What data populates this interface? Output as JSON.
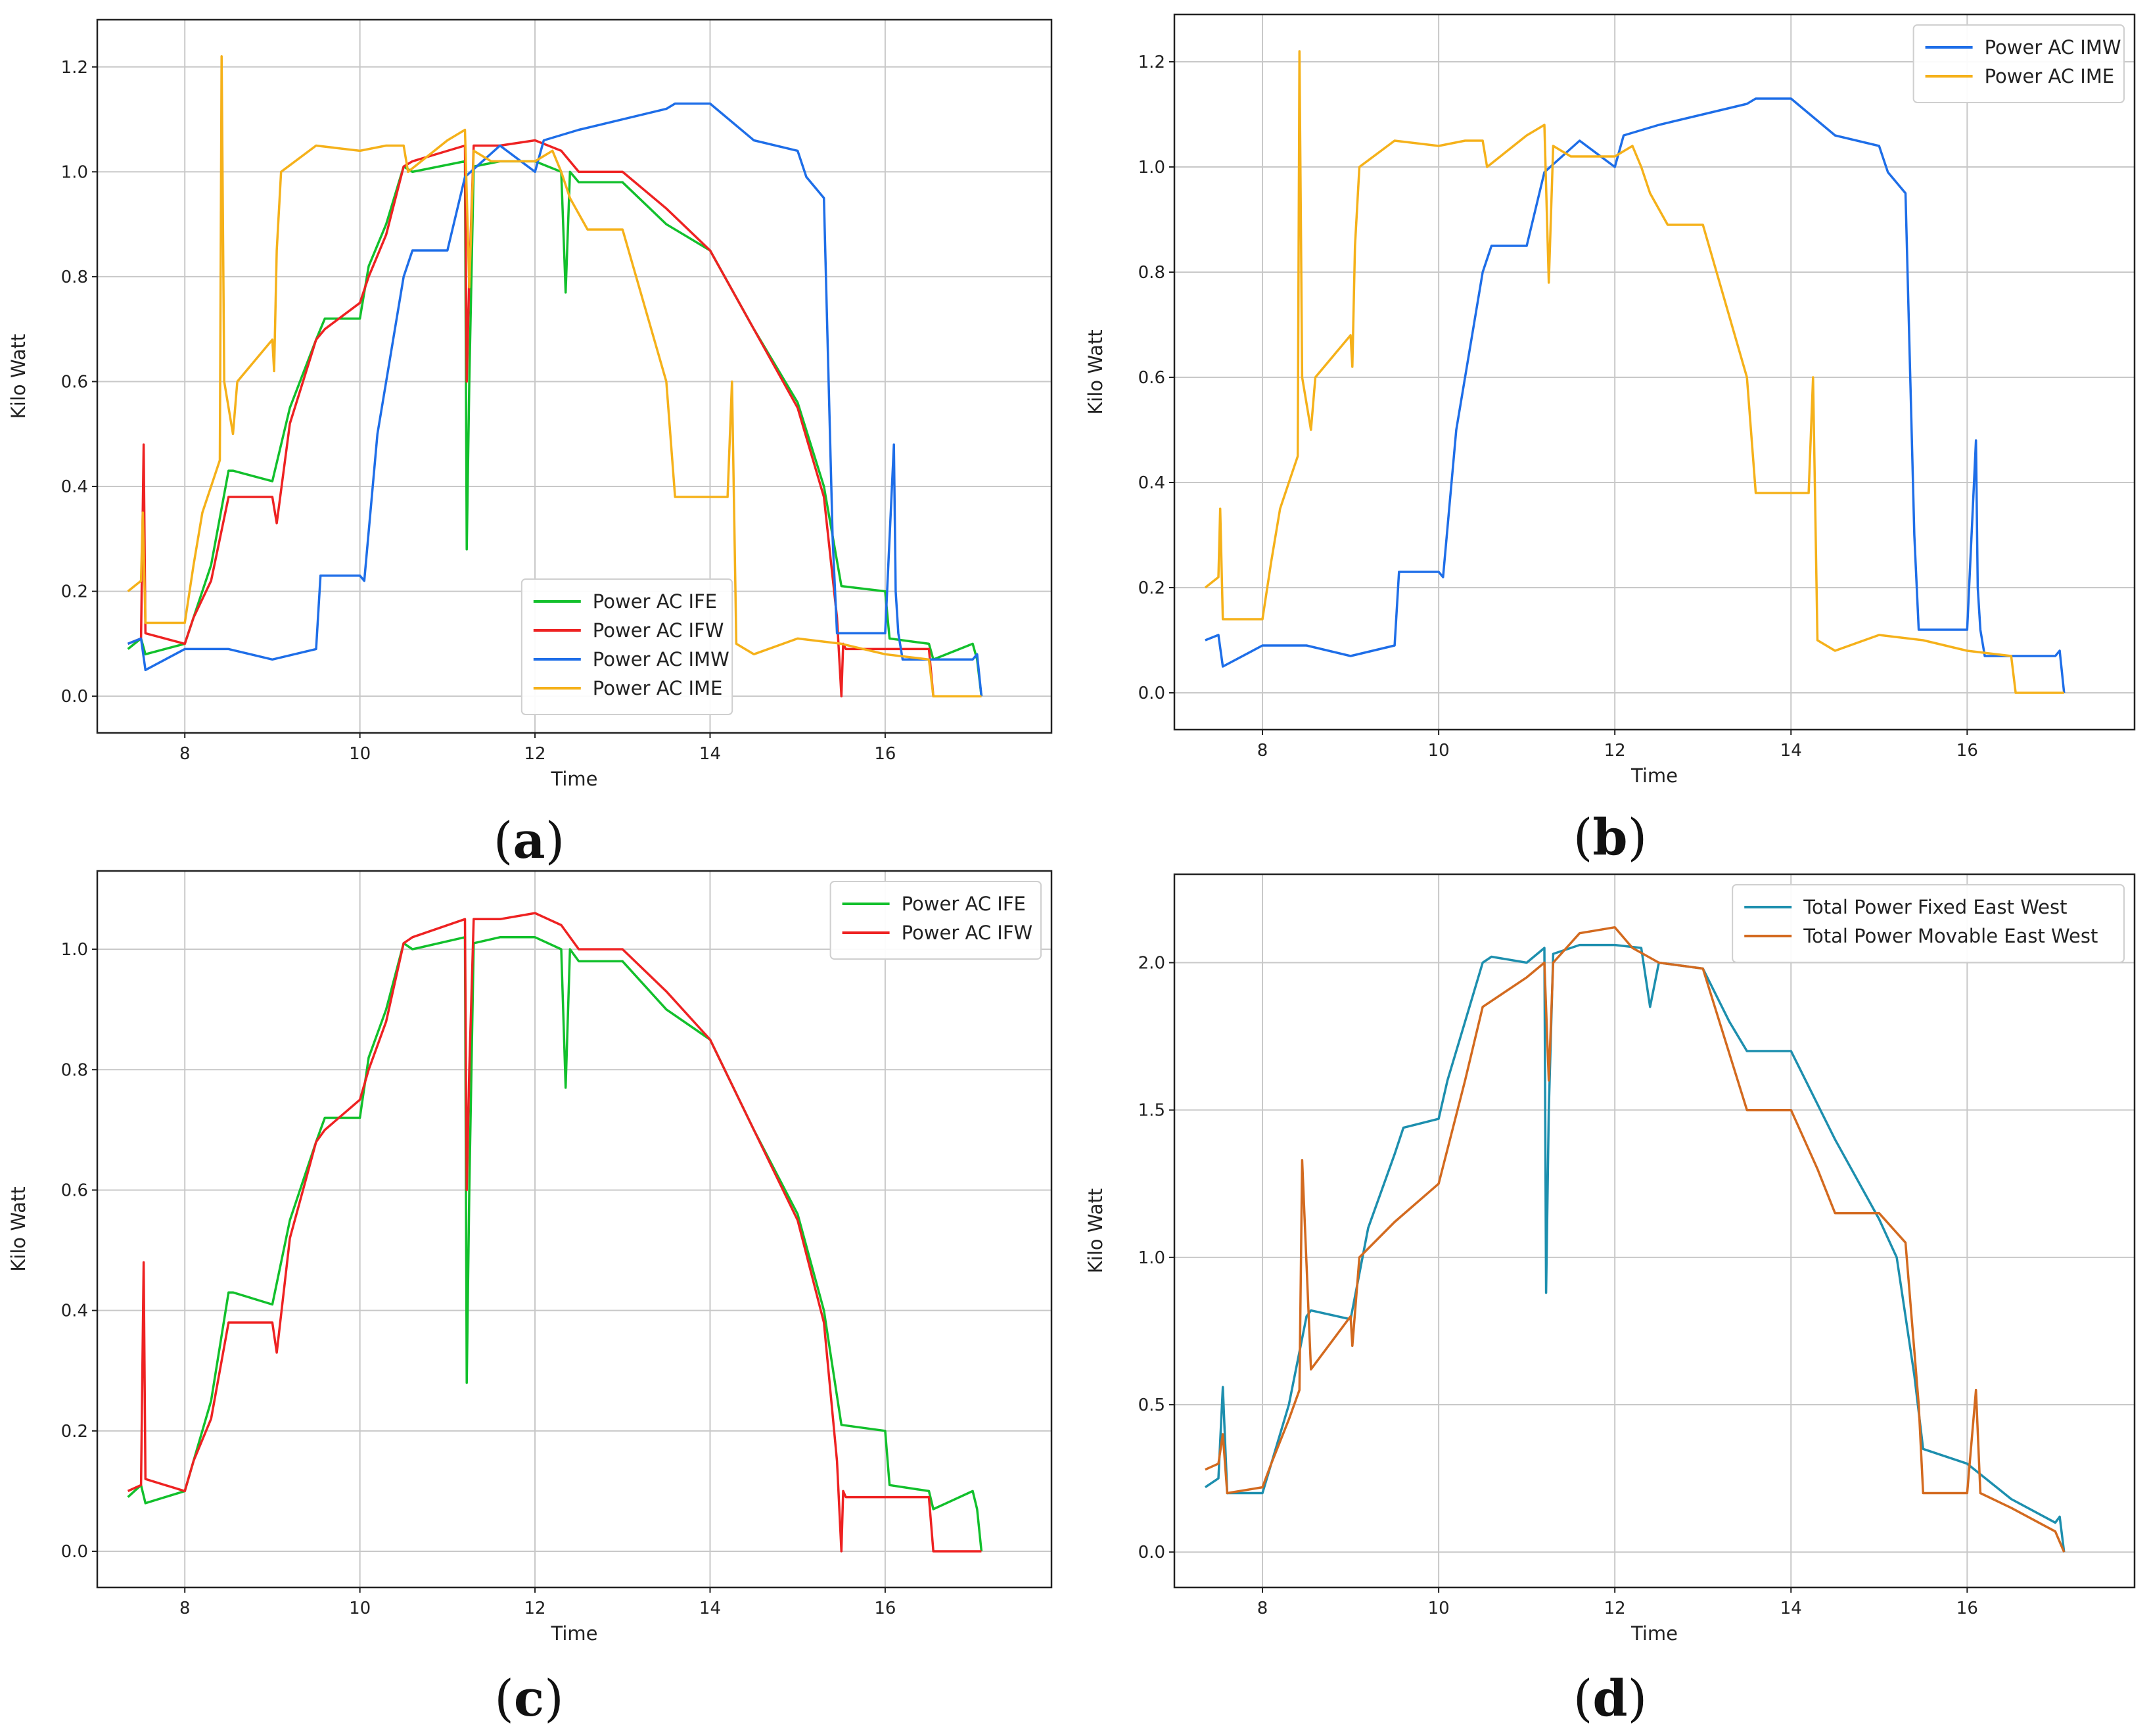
{
  "chart_data": [
    {
      "id": "a",
      "type": "line",
      "caption": "a",
      "xlabel": "Time",
      "ylabel": "Kilo Watt",
      "xlim": [
        7.0,
        17.9
      ],
      "ylim": [
        -0.07,
        1.29
      ],
      "xticks": [
        8,
        10,
        12,
        14,
        16
      ],
      "yticks": [
        0.0,
        0.2,
        0.4,
        0.6,
        0.8,
        1.0,
        1.2
      ],
      "ytick_labels": [
        "0.0",
        "0.2",
        "0.4",
        "0.6",
        "0.8",
        "1.0",
        "1.2"
      ],
      "legend_position": "bottom-center",
      "series": [
        {
          "name": "Power AC IFE",
          "color": "#12c02c",
          "x": [
            7.35,
            7.5,
            7.55,
            8.0,
            8.1,
            8.3,
            8.5,
            8.55,
            9.0,
            9.2,
            9.5,
            9.6,
            10.0,
            10.1,
            10.3,
            10.5,
            10.6,
            11.2,
            11.22,
            11.25,
            11.3,
            11.6,
            12.0,
            12.3,
            12.35,
            12.4,
            12.5,
            13.0,
            13.5,
            14.0,
            14.5,
            15.0,
            15.3,
            15.5,
            16.0,
            16.05,
            16.5,
            16.55,
            17.0,
            17.05,
            17.1
          ],
          "y": [
            0.09,
            0.11,
            0.08,
            0.1,
            0.15,
            0.25,
            0.43,
            0.43,
            0.41,
            0.55,
            0.68,
            0.72,
            0.72,
            0.82,
            0.9,
            1.01,
            1.0,
            1.02,
            0.28,
            0.6,
            1.01,
            1.02,
            1.02,
            1.0,
            0.77,
            1.0,
            0.98,
            0.98,
            0.9,
            0.85,
            0.7,
            0.56,
            0.4,
            0.21,
            0.2,
            0.11,
            0.1,
            0.07,
            0.1,
            0.07,
            0.0
          ]
        },
        {
          "name": "Power AC IFW",
          "color": "#ee2222",
          "x": [
            7.35,
            7.5,
            7.53,
            7.55,
            8.0,
            8.1,
            8.3,
            8.5,
            8.55,
            9.0,
            9.05,
            9.2,
            9.5,
            9.6,
            10.0,
            10.1,
            10.3,
            10.5,
            10.6,
            11.2,
            11.22,
            11.25,
            11.3,
            11.6,
            12.0,
            12.3,
            12.5,
            13.0,
            13.5,
            14.0,
            14.5,
            15.0,
            15.3,
            15.45,
            15.5,
            15.52,
            15.55,
            16.0,
            16.5,
            16.55,
            17.0,
            17.1
          ],
          "y": [
            0.1,
            0.11,
            0.48,
            0.12,
            0.1,
            0.15,
            0.22,
            0.38,
            0.38,
            0.38,
            0.33,
            0.52,
            0.68,
            0.7,
            0.75,
            0.8,
            0.88,
            1.01,
            1.02,
            1.05,
            0.6,
            0.8,
            1.05,
            1.05,
            1.06,
            1.04,
            1.0,
            1.0,
            0.93,
            0.85,
            0.7,
            0.55,
            0.38,
            0.15,
            0.0,
            0.1,
            0.09,
            0.09,
            0.09,
            0.0,
            0.0,
            0.0
          ]
        },
        {
          "name": "Power AC IMW",
          "color": "#1e6ee8",
          "x": [
            7.35,
            7.5,
            7.55,
            8.0,
            8.5,
            9.0,
            9.5,
            9.55,
            10.0,
            10.05,
            10.2,
            10.5,
            10.6,
            11.0,
            11.2,
            11.4,
            11.6,
            12.0,
            12.1,
            12.5,
            13.0,
            13.5,
            13.6,
            14.0,
            14.5,
            15.0,
            15.1,
            15.3,
            15.4,
            15.45,
            15.5,
            16.0,
            16.1,
            16.12,
            16.15,
            16.2,
            17.0,
            17.05,
            17.1
          ],
          "y": [
            0.1,
            0.11,
            0.05,
            0.09,
            0.09,
            0.07,
            0.09,
            0.23,
            0.23,
            0.22,
            0.5,
            0.8,
            0.85,
            0.85,
            0.99,
            1.02,
            1.05,
            1.0,
            1.06,
            1.08,
            1.1,
            1.12,
            1.13,
            1.13,
            1.06,
            1.04,
            0.99,
            0.95,
            0.3,
            0.12,
            0.12,
            0.12,
            0.48,
            0.2,
            0.12,
            0.07,
            0.07,
            0.08,
            0.0
          ]
        },
        {
          "name": "Power AC IME",
          "color": "#f5b11a",
          "x": [
            7.35,
            7.5,
            7.52,
            7.55,
            8.0,
            8.1,
            8.2,
            8.3,
            8.4,
            8.42,
            8.45,
            8.55,
            8.6,
            9.0,
            9.02,
            9.05,
            9.1,
            9.5,
            10.0,
            10.3,
            10.5,
            10.55,
            11.0,
            11.2,
            11.25,
            11.3,
            11.5,
            12.0,
            12.2,
            12.3,
            12.4,
            12.6,
            13.0,
            13.5,
            13.6,
            14.0,
            14.2,
            14.25,
            14.3,
            14.5,
            15.0,
            15.5,
            16.0,
            16.5,
            16.55,
            17.0,
            17.1
          ],
          "y": [
            0.2,
            0.22,
            0.35,
            0.14,
            0.14,
            0.25,
            0.35,
            0.4,
            0.45,
            1.22,
            0.6,
            0.5,
            0.6,
            0.68,
            0.62,
            0.85,
            1.0,
            1.05,
            1.04,
            1.05,
            1.05,
            1.0,
            1.06,
            1.08,
            0.78,
            1.04,
            1.02,
            1.02,
            1.04,
            1.0,
            0.95,
            0.89,
            0.89,
            0.6,
            0.38,
            0.38,
            0.38,
            0.6,
            0.1,
            0.08,
            0.11,
            0.1,
            0.08,
            0.07,
            0.0,
            0.0,
            0.0
          ]
        }
      ]
    },
    {
      "id": "b",
      "type": "line",
      "caption": "b",
      "xlabel": "Time",
      "ylabel": "Kilo Watt",
      "xlim": [
        7.0,
        17.9
      ],
      "ylim": [
        -0.07,
        1.29
      ],
      "xticks": [
        8,
        10,
        12,
        14,
        16
      ],
      "yticks": [
        0.0,
        0.2,
        0.4,
        0.6,
        0.8,
        1.0,
        1.2
      ],
      "ytick_labels": [
        "0.0",
        "0.2",
        "0.4",
        "0.6",
        "0.8",
        "1.0",
        "1.2"
      ],
      "legend_position": "top-right",
      "series": [
        {
          "name": "Power AC IMW",
          "color": "#1e6ee8",
          "x": [
            7.35,
            7.5,
            7.55,
            8.0,
            8.5,
            9.0,
            9.5,
            9.55,
            10.0,
            10.05,
            10.2,
            10.5,
            10.6,
            11.0,
            11.2,
            11.4,
            11.6,
            12.0,
            12.1,
            12.5,
            13.0,
            13.5,
            13.6,
            14.0,
            14.5,
            15.0,
            15.1,
            15.3,
            15.4,
            15.45,
            15.5,
            16.0,
            16.1,
            16.12,
            16.15,
            16.2,
            17.0,
            17.05,
            17.1
          ],
          "y": [
            0.1,
            0.11,
            0.05,
            0.09,
            0.09,
            0.07,
            0.09,
            0.23,
            0.23,
            0.22,
            0.5,
            0.8,
            0.85,
            0.85,
            0.99,
            1.02,
            1.05,
            1.0,
            1.06,
            1.08,
            1.1,
            1.12,
            1.13,
            1.13,
            1.06,
            1.04,
            0.99,
            0.95,
            0.3,
            0.12,
            0.12,
            0.12,
            0.48,
            0.2,
            0.12,
            0.07,
            0.07,
            0.08,
            0.0
          ]
        },
        {
          "name": "Power AC IME",
          "color": "#f5b11a",
          "x": [
            7.35,
            7.5,
            7.52,
            7.55,
            8.0,
            8.1,
            8.2,
            8.3,
            8.4,
            8.42,
            8.45,
            8.55,
            8.6,
            9.0,
            9.02,
            9.05,
            9.1,
            9.5,
            10.0,
            10.3,
            10.5,
            10.55,
            11.0,
            11.2,
            11.25,
            11.3,
            11.5,
            12.0,
            12.2,
            12.3,
            12.4,
            12.6,
            13.0,
            13.5,
            13.6,
            14.0,
            14.2,
            14.25,
            14.3,
            14.5,
            15.0,
            15.5,
            16.0,
            16.5,
            16.55,
            17.0,
            17.1
          ],
          "y": [
            0.2,
            0.22,
            0.35,
            0.14,
            0.14,
            0.25,
            0.35,
            0.4,
            0.45,
            1.22,
            0.6,
            0.5,
            0.6,
            0.68,
            0.62,
            0.85,
            1.0,
            1.05,
            1.04,
            1.05,
            1.05,
            1.0,
            1.06,
            1.08,
            0.78,
            1.04,
            1.02,
            1.02,
            1.04,
            1.0,
            0.95,
            0.89,
            0.89,
            0.6,
            0.38,
            0.38,
            0.38,
            0.6,
            0.1,
            0.08,
            0.11,
            0.1,
            0.08,
            0.07,
            0.0,
            0.0,
            0.0
          ]
        }
      ]
    },
    {
      "id": "c",
      "type": "line",
      "caption": "c",
      "xlabel": "Time",
      "ylabel": "Kilo Watt",
      "xlim": [
        7.0,
        17.9
      ],
      "ylim": [
        -0.06,
        1.13
      ],
      "xticks": [
        8,
        10,
        12,
        14,
        16
      ],
      "yticks": [
        0.0,
        0.2,
        0.4,
        0.6,
        0.8,
        1.0
      ],
      "ytick_labels": [
        "0.0",
        "0.2",
        "0.4",
        "0.6",
        "0.8",
        "1.0"
      ],
      "legend_position": "top-right",
      "series": [
        {
          "name": "Power AC IFE",
          "color": "#12c02c",
          "x": [
            7.35,
            7.5,
            7.55,
            8.0,
            8.1,
            8.3,
            8.5,
            8.55,
            9.0,
            9.2,
            9.5,
            9.6,
            10.0,
            10.1,
            10.3,
            10.5,
            10.6,
            11.2,
            11.22,
            11.25,
            11.3,
            11.6,
            12.0,
            12.3,
            12.35,
            12.4,
            12.5,
            13.0,
            13.5,
            14.0,
            14.5,
            15.0,
            15.3,
            15.5,
            16.0,
            16.05,
            16.5,
            16.55,
            17.0,
            17.05,
            17.1
          ],
          "y": [
            0.09,
            0.11,
            0.08,
            0.1,
            0.15,
            0.25,
            0.43,
            0.43,
            0.41,
            0.55,
            0.68,
            0.72,
            0.72,
            0.82,
            0.9,
            1.01,
            1.0,
            1.02,
            0.28,
            0.6,
            1.01,
            1.02,
            1.02,
            1.0,
            0.77,
            1.0,
            0.98,
            0.98,
            0.9,
            0.85,
            0.7,
            0.56,
            0.4,
            0.21,
            0.2,
            0.11,
            0.1,
            0.07,
            0.1,
            0.07,
            0.0
          ]
        },
        {
          "name": "Power AC IFW",
          "color": "#ee2222",
          "x": [
            7.35,
            7.5,
            7.53,
            7.55,
            8.0,
            8.1,
            8.3,
            8.5,
            8.55,
            9.0,
            9.05,
            9.2,
            9.5,
            9.6,
            10.0,
            10.1,
            10.3,
            10.5,
            10.6,
            11.2,
            11.22,
            11.25,
            11.3,
            11.6,
            12.0,
            12.3,
            12.5,
            13.0,
            13.5,
            14.0,
            14.5,
            15.0,
            15.3,
            15.45,
            15.5,
            15.52,
            15.55,
            16.0,
            16.5,
            16.55,
            17.0,
            17.1
          ],
          "y": [
            0.1,
            0.11,
            0.48,
            0.12,
            0.1,
            0.15,
            0.22,
            0.38,
            0.38,
            0.38,
            0.33,
            0.52,
            0.68,
            0.7,
            0.75,
            0.8,
            0.88,
            1.01,
            1.02,
            1.05,
            0.6,
            0.8,
            1.05,
            1.05,
            1.06,
            1.04,
            1.0,
            1.0,
            0.93,
            0.85,
            0.7,
            0.55,
            0.38,
            0.15,
            0.0,
            0.1,
            0.09,
            0.09,
            0.09,
            0.0,
            0.0,
            0.0
          ]
        }
      ]
    },
    {
      "id": "d",
      "type": "line",
      "caption": "d",
      "xlabel": "Time",
      "ylabel": "Kilo Watt",
      "xlim": [
        7.0,
        17.9
      ],
      "ylim": [
        -0.12,
        2.3
      ],
      "xticks": [
        8,
        10,
        12,
        14,
        16
      ],
      "yticks": [
        0.0,
        0.5,
        1.0,
        1.5,
        2.0
      ],
      "ytick_labels": [
        "0.0",
        "0.5",
        "1.0",
        "1.5",
        "2.0"
      ],
      "legend_position": "top-right",
      "series": [
        {
          "name": "Total Power Fixed East West",
          "color": "#1d8fae",
          "x": [
            7.35,
            7.5,
            7.55,
            7.6,
            8.0,
            8.1,
            8.3,
            8.5,
            8.55,
            9.0,
            9.2,
            9.5,
            9.6,
            10.0,
            10.1,
            10.3,
            10.5,
            10.6,
            11.0,
            11.2,
            11.22,
            11.25,
            11.3,
            11.6,
            12.0,
            12.3,
            12.4,
            12.5,
            13.0,
            13.3,
            13.5,
            14.0,
            14.5,
            15.0,
            15.2,
            15.4,
            15.5,
            16.0,
            16.5,
            17.0,
            17.05,
            17.1
          ],
          "y": [
            0.22,
            0.25,
            0.56,
            0.2,
            0.2,
            0.3,
            0.5,
            0.8,
            0.82,
            0.79,
            1.1,
            1.35,
            1.44,
            1.47,
            1.6,
            1.8,
            2.0,
            2.02,
            2.0,
            2.05,
            0.88,
            1.5,
            2.03,
            2.06,
            2.06,
            2.05,
            1.85,
            2.0,
            1.98,
            1.8,
            1.7,
            1.7,
            1.4,
            1.13,
            1.0,
            0.6,
            0.35,
            0.3,
            0.18,
            0.1,
            0.12,
            0.0
          ]
        },
        {
          "name": "Total Power Movable East West",
          "color": "#d36a1f",
          "x": [
            7.35,
            7.5,
            7.55,
            7.6,
            8.0,
            8.1,
            8.3,
            8.42,
            8.45,
            8.55,
            9.0,
            9.02,
            9.1,
            9.5,
            10.0,
            10.3,
            10.5,
            11.0,
            11.2,
            11.25,
            11.3,
            11.6,
            12.0,
            12.2,
            12.5,
            13.0,
            13.5,
            13.6,
            14.0,
            14.3,
            14.5,
            15.0,
            15.3,
            15.45,
            15.5,
            16.0,
            16.1,
            16.15,
            16.5,
            17.0,
            17.1
          ],
          "y": [
            0.28,
            0.3,
            0.4,
            0.2,
            0.22,
            0.3,
            0.45,
            0.55,
            1.33,
            0.62,
            0.8,
            0.7,
            1.0,
            1.12,
            1.25,
            1.6,
            1.85,
            1.95,
            2.0,
            1.6,
            2.0,
            2.1,
            2.12,
            2.05,
            2.0,
            1.98,
            1.5,
            1.5,
            1.5,
            1.3,
            1.15,
            1.15,
            1.05,
            0.5,
            0.2,
            0.2,
            0.55,
            0.2,
            0.15,
            0.07,
            0.0
          ]
        }
      ]
    }
  ]
}
